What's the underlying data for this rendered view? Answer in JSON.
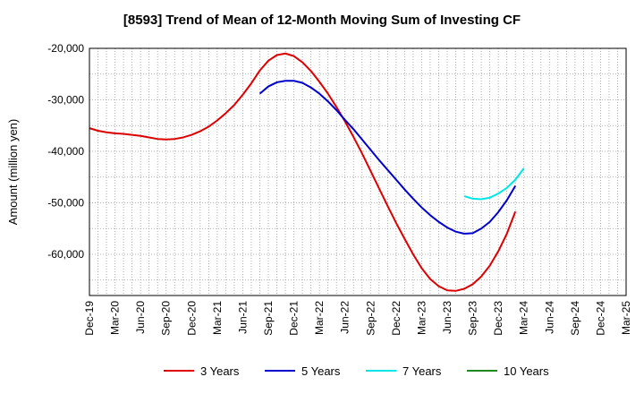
{
  "chart_data": {
    "type": "line",
    "title": "[8593]  Trend of Mean of 12-Month Moving Sum of Investing CF",
    "xlabel": "",
    "ylabel": "Amount (million yen)",
    "ylim": [
      -68000,
      -20000
    ],
    "yticks": [
      -20000,
      -30000,
      -40000,
      -50000,
      -60000
    ],
    "ytick_labels": [
      "-20,000",
      "-30,000",
      "-40,000",
      "-50,000",
      "-60,000"
    ],
    "xlim": [
      0,
      63
    ],
    "x_tick_labels": [
      {
        "i": 0,
        "label": "Dec-19"
      },
      {
        "i": 3,
        "label": "Mar-20"
      },
      {
        "i": 6,
        "label": "Jun-20"
      },
      {
        "i": 9,
        "label": "Sep-20"
      },
      {
        "i": 12,
        "label": "Dec-20"
      },
      {
        "i": 15,
        "label": "Mar-21"
      },
      {
        "i": 18,
        "label": "Jun-21"
      },
      {
        "i": 21,
        "label": "Sep-21"
      },
      {
        "i": 24,
        "label": "Dec-21"
      },
      {
        "i": 27,
        "label": "Mar-22"
      },
      {
        "i": 30,
        "label": "Jun-22"
      },
      {
        "i": 33,
        "label": "Sep-22"
      },
      {
        "i": 36,
        "label": "Dec-22"
      },
      {
        "i": 39,
        "label": "Mar-23"
      },
      {
        "i": 42,
        "label": "Jun-23"
      },
      {
        "i": 45,
        "label": "Sep-23"
      },
      {
        "i": 48,
        "label": "Dec-23"
      },
      {
        "i": 51,
        "label": "Mar-24"
      },
      {
        "i": 54,
        "label": "Jun-24"
      },
      {
        "i": 57,
        "label": "Sep-24"
      },
      {
        "i": 60,
        "label": "Dec-24"
      },
      {
        "i": 63,
        "label": "Mar-25"
      }
    ],
    "grid": true,
    "legend_position": "bottom",
    "series": [
      {
        "name": "3 Years",
        "color": "#dd0000",
        "start_index": 0,
        "values": [
          -35500,
          -36000,
          -36300,
          -36500,
          -36600,
          -36800,
          -37000,
          -37300,
          -37600,
          -37700,
          -37600,
          -37300,
          -36800,
          -36100,
          -35200,
          -34000,
          -32600,
          -31000,
          -29000,
          -26800,
          -24300,
          -22400,
          -21300,
          -21000,
          -21500,
          -22700,
          -24400,
          -26500,
          -28800,
          -31400,
          -34200,
          -37200,
          -40400,
          -43800,
          -47200,
          -50600,
          -53900,
          -57000,
          -60000,
          -62700,
          -64800,
          -66200,
          -67000,
          -67100,
          -66700,
          -65800,
          -64300,
          -62200,
          -59400,
          -56000,
          -51700
        ]
      },
      {
        "name": "5 Years",
        "color": "#0000cc",
        "start_index": 20,
        "values": [
          -28800,
          -27400,
          -26600,
          -26300,
          -26300,
          -26700,
          -27600,
          -28800,
          -30300,
          -32000,
          -33900,
          -35700,
          -37700,
          -39700,
          -41700,
          -43600,
          -45500,
          -47400,
          -49200,
          -50900,
          -52400,
          -53700,
          -54800,
          -55600,
          -56000,
          -55900,
          -55000,
          -53700,
          -51800,
          -49500,
          -46700
        ]
      },
      {
        "name": "7 Years",
        "color": "#00e5e5",
        "start_index": 44,
        "values": [
          -48700,
          -49200,
          -49300,
          -49000,
          -48200,
          -47100,
          -45500,
          -43300
        ]
      },
      {
        "name": "10 Years",
        "color": "#228822",
        "start_index": 44,
        "values": []
      }
    ]
  }
}
